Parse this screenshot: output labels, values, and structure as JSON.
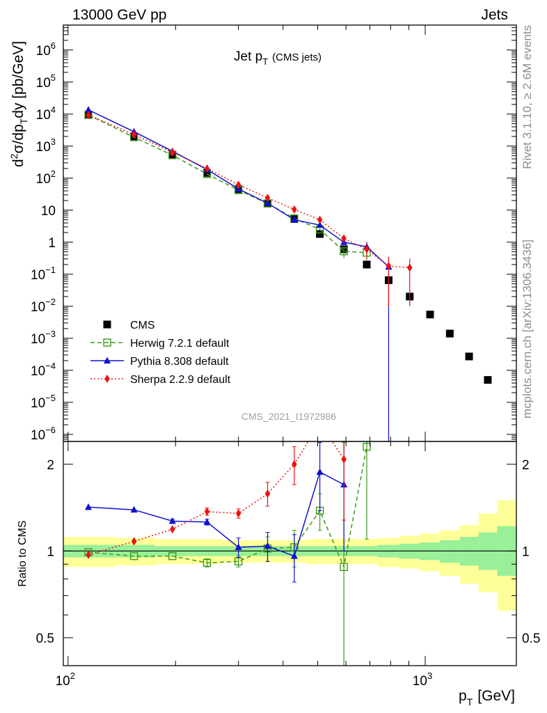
{
  "header": {
    "left": "13000 GeV pp",
    "right": "Jets",
    "side_top": "Rivet 3.1.10, ≥ 2.6M events",
    "side_bottom": "mcplots.cern.ch [arXiv:1306.3436]"
  },
  "chart_data": [
    {
      "type": "line",
      "title": "Jet p_T (CMS jets)",
      "title_main": "Jet p",
      "title_sub": "T",
      "title_extra": "(CMS jets)",
      "ylabel": "d²σ/dp_T dy [pb/GeV]",
      "xscale": "log",
      "yscale": "log",
      "xlim": [
        97,
        1800
      ],
      "ylim": [
        6e-07,
        6000000.0
      ],
      "watermark": "CMS_2021_I1972986",
      "legend_position": "bottom-left",
      "y_tick_labels": [
        "10⁻⁶",
        "10⁻⁵",
        "10⁻⁴",
        "10⁻³",
        "10⁻²",
        "10⁻¹",
        "1",
        "10",
        "10²",
        "10³",
        "10⁴",
        "10⁵",
        "10⁶"
      ],
      "series": [
        {
          "name": "CMS",
          "style": "marker",
          "color": "#000000",
          "marker": "square",
          "x": [
            114,
            153,
            196,
            245,
            300,
            362,
            430,
            507,
            592,
            686,
            790,
            905,
            1032,
            1172,
            1327,
            1497
          ],
          "y": [
            9500,
            2000,
            540,
            145,
            45,
            16,
            5.3,
            1.8,
            0.6,
            0.2,
            0.065,
            0.02,
            0.0055,
            0.0014,
            0.00027,
            5e-05
          ]
        },
        {
          "name": "Herwig 7.2.1 default",
          "style": "dashed",
          "color": "#3c9a1c",
          "marker": "open-square",
          "x": [
            114,
            153,
            196,
            245,
            300,
            362,
            430,
            507,
            592,
            686
          ],
          "y": [
            9400,
            1900,
            520,
            133,
            42,
            16.2,
            5.5,
            2.5,
            0.52,
            0.47
          ],
          "err": [
            0,
            0,
            0,
            0,
            0,
            0,
            0,
            0,
            0.2,
            0.2
          ]
        },
        {
          "name": "Pythia 8.308 default",
          "style": "solid",
          "color": "#1010d0",
          "marker": "triangle",
          "x": [
            114,
            153,
            196,
            245,
            300,
            362,
            430,
            507,
            592,
            686,
            790
          ],
          "y": [
            13500,
            2800,
            690,
            185,
            46,
            16.5,
            5.0,
            3.4,
            1.0,
            0.72,
            0.17
          ],
          "err": [
            0,
            0,
            0,
            0,
            0,
            0,
            0,
            0,
            0.3,
            0.3,
            0.17
          ]
        },
        {
          "name": "Sherpa 2.2.9 default",
          "style": "dotted",
          "color": "#ee1010",
          "marker": "diamond",
          "x": [
            114,
            153,
            196,
            245,
            300,
            362,
            430,
            507,
            592,
            686,
            790,
            905
          ],
          "y": [
            9300,
            2300,
            640,
            200,
            62,
            24,
            10.5,
            5.0,
            1.3,
            0.6,
            0.18,
            0.16
          ],
          "err": [
            0,
            0,
            0,
            0,
            0,
            0,
            0,
            0,
            0.4,
            0.3,
            0.17,
            0.15
          ]
        }
      ]
    },
    {
      "type": "line",
      "ylabel": "Ratio to CMS",
      "xlabel": "p_T [GeV]",
      "xlabel_main": "p",
      "xlabel_sub": "T",
      "xlabel_unit": "[GeV]",
      "xscale": "log",
      "yscale": "log",
      "xlim": [
        97,
        1800
      ],
      "ylim": [
        0.4,
        2.4
      ],
      "y_ticks": [
        0.5,
        1,
        2
      ],
      "y_tick_labels": [
        "0.5",
        "1",
        "2"
      ],
      "x_ticks": [
        100,
        1000
      ],
      "x_tick_labels": [
        [
          "10",
          "2"
        ],
        [
          "10",
          "3"
        ]
      ],
      "band_edges": [
        97,
        135,
        175,
        220,
        270,
        330,
        395,
        465,
        545,
        635,
        735,
        845,
        965,
        1100,
        1250,
        1410,
        1590,
        1800
      ],
      "band_yellow": [
        [
          0.88,
          1.12
        ],
        [
          0.89,
          1.11
        ],
        [
          0.9,
          1.1
        ],
        [
          0.9,
          1.1
        ],
        [
          0.91,
          1.09
        ],
        [
          0.91,
          1.09
        ],
        [
          0.91,
          1.09
        ],
        [
          0.9,
          1.1
        ],
        [
          0.9,
          1.1
        ],
        [
          0.9,
          1.1
        ],
        [
          0.88,
          1.11
        ],
        [
          0.87,
          1.13
        ],
        [
          0.85,
          1.15
        ],
        [
          0.82,
          1.18
        ],
        [
          0.77,
          1.23
        ],
        [
          0.72,
          1.35
        ],
        [
          0.62,
          1.5
        ]
      ],
      "band_green": [
        [
          0.95,
          1.05
        ],
        [
          0.95,
          1.05
        ],
        [
          0.96,
          1.04
        ],
        [
          0.96,
          1.04
        ],
        [
          0.96,
          1.04
        ],
        [
          0.96,
          1.04
        ],
        [
          0.96,
          1.04
        ],
        [
          0.96,
          1.04
        ],
        [
          0.96,
          1.04
        ],
        [
          0.96,
          1.04
        ],
        [
          0.95,
          1.05
        ],
        [
          0.94,
          1.06
        ],
        [
          0.93,
          1.07
        ],
        [
          0.91,
          1.09
        ],
        [
          0.89,
          1.12
        ],
        [
          0.86,
          1.16
        ],
        [
          0.82,
          1.22
        ]
      ],
      "series": [
        {
          "name": "Herwig 7.2.1 default",
          "style": "dashed",
          "color": "#3c9a1c",
          "marker": "open-square",
          "x": [
            114,
            153,
            196,
            245,
            300,
            362,
            430,
            507,
            592,
            686
          ],
          "y": [
            0.99,
            0.96,
            0.96,
            0.91,
            0.92,
            1.02,
            1.03,
            1.38,
            0.88,
            2.3
          ],
          "err_lo": [
            0,
            0,
            0,
            0.03,
            0.04,
            0.1,
            0.15,
            0.2,
            0.5,
            1.2
          ],
          "err_hi": [
            0,
            0,
            0,
            0.03,
            0.04,
            0.1,
            0.15,
            0.2,
            1.5,
            2.0
          ]
        },
        {
          "name": "Pythia 8.308 default",
          "style": "solid",
          "color": "#1010d0",
          "marker": "triangle",
          "x": [
            114,
            153,
            196,
            245,
            300,
            362,
            430,
            507,
            592
          ],
          "y": [
            1.42,
            1.39,
            1.27,
            1.26,
            1.03,
            1.04,
            0.96,
            1.88,
            1.7
          ],
          "err_lo": [
            0,
            0,
            0.02,
            0.03,
            0.08,
            0.12,
            0.18,
            0.5,
            0.7
          ],
          "err_hi": [
            0,
            0,
            0.02,
            0.03,
            0.08,
            0.12,
            0.18,
            0.5,
            1.0
          ]
        },
        {
          "name": "Sherpa 2.2.9 default",
          "style": "dotted",
          "color": "#ee1010",
          "marker": "diamond",
          "x": [
            114,
            153,
            196,
            245,
            300,
            362,
            430,
            507,
            592
          ],
          "y": [
            0.97,
            1.08,
            1.19,
            1.37,
            1.35,
            1.58,
            2.0,
            2.8,
            2.08
          ],
          "err_lo": [
            0,
            0,
            0,
            0.04,
            0.05,
            0.15,
            0.3,
            0.4,
            0.8
          ],
          "err_hi": [
            0,
            0,
            0,
            0.04,
            0.05,
            0.15,
            0.3,
            0.4,
            1.0
          ]
        }
      ]
    }
  ]
}
